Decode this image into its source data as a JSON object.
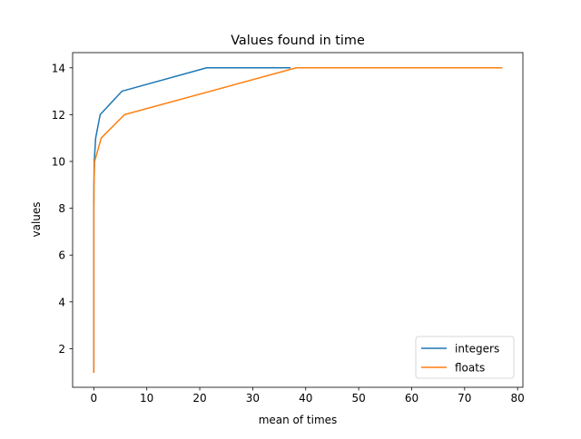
{
  "chart_data": {
    "type": "line",
    "title": "Values found in time",
    "xlabel": "mean of times",
    "ylabel": "values",
    "xlim": [
      -4,
      81
    ],
    "ylim": [
      0.35,
      14.65
    ],
    "xticks": [
      0,
      10,
      20,
      30,
      40,
      50,
      60,
      70,
      80
    ],
    "yticks": [
      2,
      4,
      6,
      8,
      10,
      12,
      14
    ],
    "grid": false,
    "legend_position": "lower right",
    "series": [
      {
        "name": "integers",
        "color": "#1f77b4",
        "x": [
          0,
          0,
          0,
          0,
          0,
          0,
          0,
          0,
          0.02,
          0.08,
          0.35,
          1.2,
          5.3,
          21.3,
          37.0
        ],
        "y": [
          1,
          2,
          3,
          4,
          5,
          6,
          7,
          8,
          9,
          10,
          11,
          12,
          13,
          14,
          14
        ]
      },
      {
        "name": "floats",
        "color": "#ff7f0e",
        "x": [
          0,
          0,
          0,
          0,
          0,
          0,
          0,
          0,
          0.03,
          0.15,
          1.4,
          5.8,
          38.2,
          77.0
        ],
        "y": [
          1,
          2,
          3,
          4,
          5,
          6,
          7,
          8,
          9,
          10,
          11,
          12,
          14,
          14
        ]
      }
    ]
  }
}
